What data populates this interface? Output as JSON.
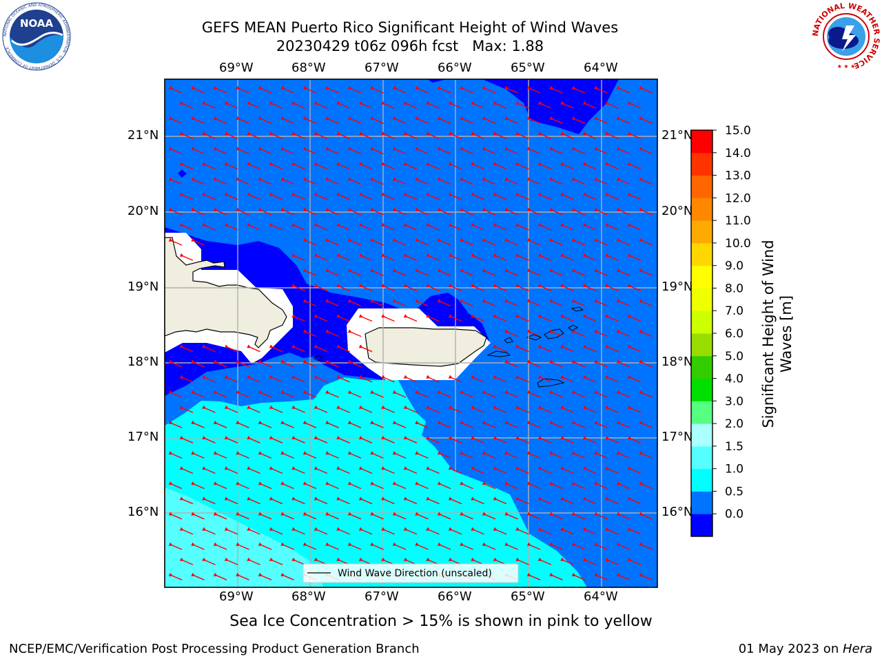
{
  "title": {
    "line1": "GEFS MEAN Puerto Rico Significant Height of Wind Waves",
    "line2": "20230429 t06z 096h fcst   Max: 1.88"
  },
  "logos": {
    "left": "NOAA",
    "left_ring_text": "NATIONAL OCEANIC AND ATMOSPHERIC ADMINISTRATION · U.S. DEPARTMENT OF COMMERCE",
    "right_ring_text": "NATIONAL WEATHER SERVICE"
  },
  "map": {
    "lon_labels": [
      "69°W",
      "68°W",
      "67°W",
      "66°W",
      "65°W",
      "64°W"
    ],
    "lat_labels": [
      "21°N",
      "20°N",
      "19°N",
      "18°N",
      "17°N",
      "16°N"
    ],
    "legend_text": "Wind Wave Direction (unscaled)",
    "colors": {
      "land": "#efeedf",
      "ice_free_white": "#ffffff",
      "level_0_0.5": "#0000ff",
      "level_0.5_1.0": "#0073ff",
      "level_1.0_1.5": "#00ffff",
      "level_1.5_2.0": "#55ffff",
      "arrow": "#ff0000",
      "grid": "#b0b0b0"
    },
    "arrow_direction_deg": 190
  },
  "colorbar": {
    "label": "Significant Height of Wind\nWaves [m]",
    "ticks": [
      "15.0",
      "14.0",
      "13.0",
      "12.0",
      "11.0",
      "10.0",
      "9.0",
      "8.0",
      "7.0",
      "6.0",
      "5.0",
      "4.0",
      "3.0",
      "2.0",
      "1.5",
      "1.0",
      "0.5",
      "0.0"
    ],
    "colors_bottom_to_top": [
      "#0000ff",
      "#0073ff",
      "#00ffff",
      "#55ffff",
      "#aaffff",
      "#55ff80",
      "#00e000",
      "#33cc00",
      "#99dd00",
      "#ccff00",
      "#eeff00",
      "#ffff00",
      "#ffd700",
      "#ffaa00",
      "#ff8800",
      "#ff6600",
      "#ff3300",
      "#ff0000"
    ]
  },
  "note": "Sea Ice Concentration > 15% is shown in pink to yellow",
  "footer": {
    "left": "NCEP/EMC/Verification Post Processing Product Generation Branch",
    "right_date": "01 May 2023 on ",
    "right_machine": "Hera"
  }
}
